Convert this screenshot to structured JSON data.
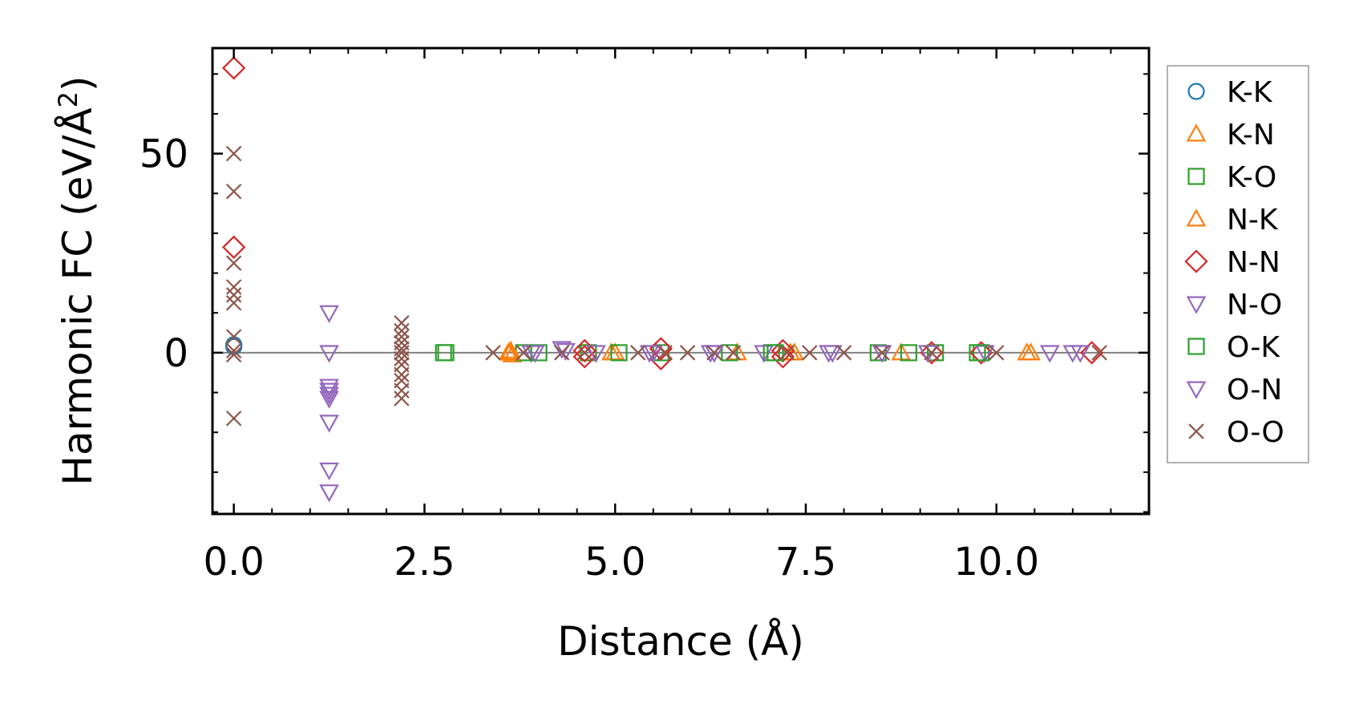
{
  "chart_data": {
    "type": "scatter",
    "xlabel": "Distance (Å)",
    "ylabel_main": "Harmonic FC (eV/Å",
    "ylabel_sup": "2",
    "ylabel_close": ")",
    "xlim": [
      -0.28,
      12.0
    ],
    "ylim": [
      -40.5,
      76.5
    ],
    "xticks": [
      0.0,
      2.5,
      5.0,
      7.5,
      10.0
    ],
    "xtick_labels": [
      "0.0",
      "2.5",
      "5.0",
      "7.5",
      "10.0"
    ],
    "yticks": [
      0,
      50
    ],
    "ytick_labels": [
      "0",
      "50"
    ],
    "x_minor_step": 0.5,
    "y_minor_step": 10,
    "zero_line": true,
    "legend_position": "outside-right",
    "series": [
      {
        "name": "K-K",
        "color": "#1f77b4",
        "marker": "circle",
        "points": [
          [
            0.0,
            2.0
          ],
          [
            0.0,
            1.5
          ]
        ]
      },
      {
        "name": "K-N",
        "color": "#ff7f0e",
        "marker": "triangle-up",
        "points": [
          [
            3.6,
            0.0
          ],
          [
            3.65,
            -0.5
          ],
          [
            4.95,
            0.0
          ],
          [
            6.6,
            0.0
          ],
          [
            7.35,
            0.0
          ],
          [
            8.75,
            0.0
          ],
          [
            10.4,
            0.0
          ]
        ]
      },
      {
        "name": "K-O",
        "color": "#2ca02c",
        "marker": "square",
        "points": [
          [
            2.75,
            0.0
          ],
          [
            3.8,
            0.0
          ],
          [
            4.65,
            0.0
          ],
          [
            5.6,
            0.0
          ],
          [
            6.5,
            0.0
          ],
          [
            7.05,
            0.0
          ],
          [
            8.45,
            0.0
          ],
          [
            8.85,
            0.0
          ],
          [
            9.2,
            0.0
          ],
          [
            9.8,
            0.0
          ]
        ]
      },
      {
        "name": "N-K",
        "color": "#ff7f0e",
        "marker": "triangle-up",
        "points": [
          [
            3.62,
            0.0
          ],
          [
            3.63,
            0.5
          ],
          [
            5.0,
            0.0
          ],
          [
            7.3,
            0.0
          ],
          [
            10.45,
            0.0
          ]
        ]
      },
      {
        "name": "N-N",
        "color": "#d62728",
        "marker": "diamond",
        "points": [
          [
            0.0,
            71.5
          ],
          [
            0.0,
            26.5
          ],
          [
            4.6,
            0.5
          ],
          [
            4.6,
            -1.0
          ],
          [
            5.6,
            1.0
          ],
          [
            5.6,
            -1.5
          ],
          [
            7.2,
            0.5
          ],
          [
            7.2,
            -1.0
          ],
          [
            9.15,
            0.0
          ],
          [
            9.8,
            0.0
          ],
          [
            11.25,
            0.0
          ]
        ]
      },
      {
        "name": "N-O",
        "color": "#9467bd",
        "marker": "triangle-down",
        "points": [
          [
            1.25,
            10.0
          ],
          [
            1.25,
            0.0
          ],
          [
            1.25,
            -8.5
          ],
          [
            1.25,
            -9.5
          ],
          [
            1.25,
            -10.5
          ],
          [
            1.25,
            -11.5
          ],
          [
            1.25,
            -17.5
          ],
          [
            1.25,
            -29.5
          ],
          [
            1.25,
            -35.0
          ],
          [
            3.9,
            0.0
          ],
          [
            4.3,
            1.0
          ],
          [
            4.75,
            0.0
          ],
          [
            5.45,
            0.0
          ],
          [
            6.3,
            0.0
          ],
          [
            6.95,
            0.0
          ],
          [
            7.85,
            0.0
          ],
          [
            8.5,
            0.0
          ],
          [
            9.1,
            0.0
          ],
          [
            9.85,
            0.0
          ],
          [
            10.7,
            0.0
          ],
          [
            11.0,
            0.0
          ]
        ]
      },
      {
        "name": "O-K",
        "color": "#2ca02c",
        "marker": "square",
        "points": [
          [
            2.78,
            0.0
          ],
          [
            4.0,
            0.0
          ],
          [
            5.05,
            0.0
          ],
          [
            7.1,
            0.0
          ],
          [
            9.75,
            0.0
          ]
        ]
      },
      {
        "name": "O-N",
        "color": "#9467bd",
        "marker": "triangle-down",
        "points": [
          [
            3.95,
            0.0
          ],
          [
            4.35,
            0.5
          ],
          [
            5.5,
            0.0
          ],
          [
            6.25,
            0.0
          ],
          [
            7.8,
            0.0
          ],
          [
            11.1,
            0.0
          ]
        ]
      },
      {
        "name": "O-O",
        "color": "#8c564b",
        "marker": "x",
        "points": [
          [
            0.0,
            50.0
          ],
          [
            0.0,
            40.5
          ],
          [
            0.0,
            22.5
          ],
          [
            0.0,
            16.5
          ],
          [
            0.0,
            14.5
          ],
          [
            0.0,
            12.5
          ],
          [
            0.0,
            4.0
          ],
          [
            0.0,
            0.5
          ],
          [
            0.0,
            -0.5
          ],
          [
            0.0,
            -16.5
          ],
          [
            2.2,
            7.5
          ],
          [
            2.2,
            5.5
          ],
          [
            2.2,
            4.0
          ],
          [
            2.2,
            2.5
          ],
          [
            2.2,
            1.0
          ],
          [
            2.2,
            0.0
          ],
          [
            2.2,
            -1.5
          ],
          [
            2.2,
            -3.0
          ],
          [
            2.2,
            -5.5
          ],
          [
            2.2,
            -7.0
          ],
          [
            2.2,
            -9.5
          ],
          [
            2.2,
            -11.5
          ],
          [
            3.4,
            0.0
          ],
          [
            3.8,
            0.0
          ],
          [
            4.3,
            0.0
          ],
          [
            4.6,
            0.0
          ],
          [
            5.3,
            0.0
          ],
          [
            5.65,
            0.0
          ],
          [
            5.95,
            0.0
          ],
          [
            6.3,
            0.0
          ],
          [
            6.55,
            0.0
          ],
          [
            7.25,
            0.0
          ],
          [
            7.55,
            0.0
          ],
          [
            8.0,
            0.0
          ],
          [
            8.5,
            0.0
          ],
          [
            9.15,
            0.0
          ],
          [
            10.0,
            0.0
          ],
          [
            11.35,
            0.0
          ]
        ]
      }
    ]
  }
}
